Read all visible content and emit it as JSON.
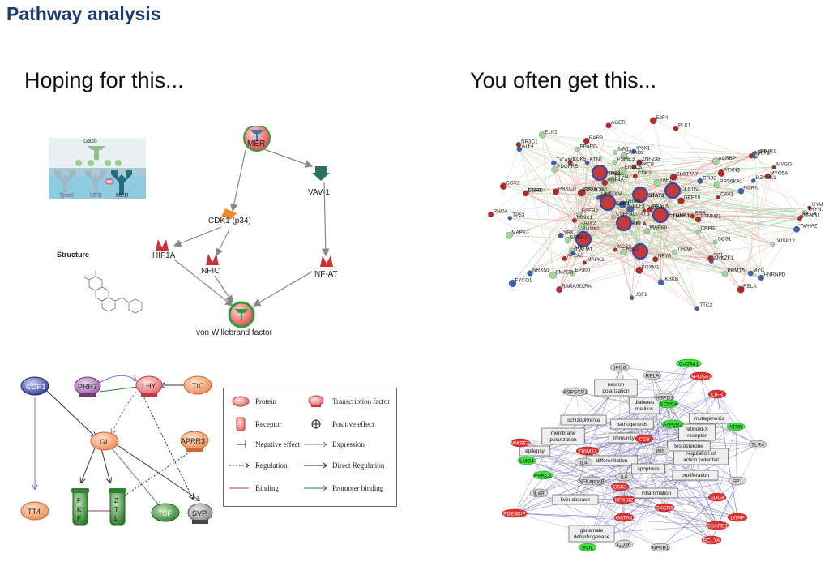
{
  "title": "Pathway analysis",
  "left_heading": "Hoping for this...",
  "right_heading": "You often get this...",
  "pathway": {
    "inset_labels": [
      "Gas6",
      "Tyro3",
      "UFO",
      "MER"
    ],
    "structure_label": "Structure",
    "nodes": [
      "MER",
      "VAV-1",
      "CDK1 (p34)",
      "HIF1A",
      "NFIC",
      "NF-AT",
      "von Willebrand factor"
    ]
  },
  "gene_network": {
    "node_labels": [
      "DLG4",
      "NCS2",
      "SIRT1",
      "RARA/RXRA",
      "IP6K1",
      "PPARG",
      "TAF1",
      "NRXN1",
      "TRIM5",
      "KTN1",
      "MYO5A",
      "ANKZF1",
      "DZANK1",
      "TICAM2",
      "MYGG",
      "AHR",
      "SLC17A7",
      "TIRAP",
      "YBX1",
      "NGRN",
      "AGER",
      "CREB1",
      "EGFR",
      "RUNX2",
      "PEA15",
      "CALM1",
      "ELK1",
      "FGFR2",
      "ERBB2",
      "AP2A2",
      "EP300",
      "PPP1CA",
      "RPS6KA1",
      "ACRBP",
      "PDGFRB",
      "RHOA",
      "CAV1",
      "PTEN",
      "PRKCD",
      "MAPK1",
      "PLK1",
      "MYC",
      "SOS1",
      "MAPK8",
      "ESR1",
      "HSF1",
      "MAPK3",
      "RELA",
      "SPP1",
      "STUB1",
      "CDK2",
      "CTNNB1",
      "STAT3",
      "CSNK2A1",
      "SMAD2",
      "HNF4A",
      "CLSTN1",
      "FYCO1",
      "SP1",
      "CCNG1",
      "NR3C1",
      "YWHAZ",
      "TTC3",
      "COX2",
      "RBL2",
      "IKBKB",
      "DUSP12",
      "RARB",
      "CSPF3L",
      "HNRNPD",
      "PRMT5",
      "DNAH8",
      "SSU72",
      "THYN1",
      "ZNF238",
      "USF1",
      "GRB2",
      "FOXM1",
      "ATXN3",
      "SMAD3",
      "ERCC5",
      "PSME3",
      "NFYA",
      "SYMPK",
      "ATF4",
      "GRB10",
      "NEDD4",
      "TP53",
      "E2F4",
      "MINK1",
      "ATF2",
      "CDK5",
      "SMAD4",
      "PRKCB",
      "ELF3"
    ],
    "hub_labels": [
      "TP53",
      "STAT3",
      "CTNNB1",
      "RELA",
      "ESR1"
    ]
  },
  "plant_network": {
    "nodes": [
      "COP1",
      "PRR7",
      "LHY",
      "TIC",
      "GI",
      "APRR3",
      "TT4",
      "FKF1",
      "ZTL",
      "TSF",
      "SVP"
    ],
    "receptor_letters": {
      "fkf1": [
        "F",
        "K",
        "F"
      ],
      "ztl": [
        "Z",
        "T",
        "L"
      ]
    },
    "legend": [
      {
        "symbol": "protein",
        "label": "Protein"
      },
      {
        "symbol": "tf",
        "label": "Transcription factor"
      },
      {
        "symbol": "receptor",
        "label": "Receptor"
      },
      {
        "symbol": "positive",
        "label": "Positive effect"
      },
      {
        "symbol": "negative",
        "label": "Negative effect"
      },
      {
        "symbol": "expression",
        "label": "Expression"
      },
      {
        "symbol": "regulation",
        "label": "Regulation"
      },
      {
        "symbol": "direct",
        "label": "Direct Regulation"
      },
      {
        "symbol": "binding",
        "label": "Binding"
      },
      {
        "symbol": "promoter",
        "label": "Promoter binding"
      }
    ]
  },
  "disease_network": {
    "boxes": [
      "neuron polarization",
      "diabetes mellitus",
      "schizophrenia",
      "pathogenesis",
      "membrane polarization",
      "immunity",
      "epilepsy",
      "differentiation",
      "apoptosis",
      "regulation of action potential",
      "proliferation",
      "retinoid-X receptor",
      "mutagenesis",
      "testosterone",
      "inflammation",
      "liver disease",
      "glutamate dehydrogenase"
    ],
    "genes_grey": [
      "IFI16",
      "RELA",
      "ASPSCR1",
      "HSPD1",
      "TLR4",
      "INS",
      "IL4R",
      "NFKappaB",
      "SP1",
      "CD36",
      "NFKB1",
      "IL4",
      "IL6"
    ],
    "genes_red": [
      "SPDSA1",
      "LIFR",
      "WASF2",
      "CD8",
      "TRIM13",
      "GSK3",
      "NFKBIZ",
      "CXCR6",
      "SDC4",
      "PDE4DIP",
      "GATA3",
      "SCARB1",
      "LITAF",
      "BCL7A"
    ],
    "genes_green": [
      "Col24a1",
      "SCN5A",
      "ATP2B2",
      "ATRN",
      "LMO4",
      "PRKCZ",
      "SVIL"
    ]
  }
}
